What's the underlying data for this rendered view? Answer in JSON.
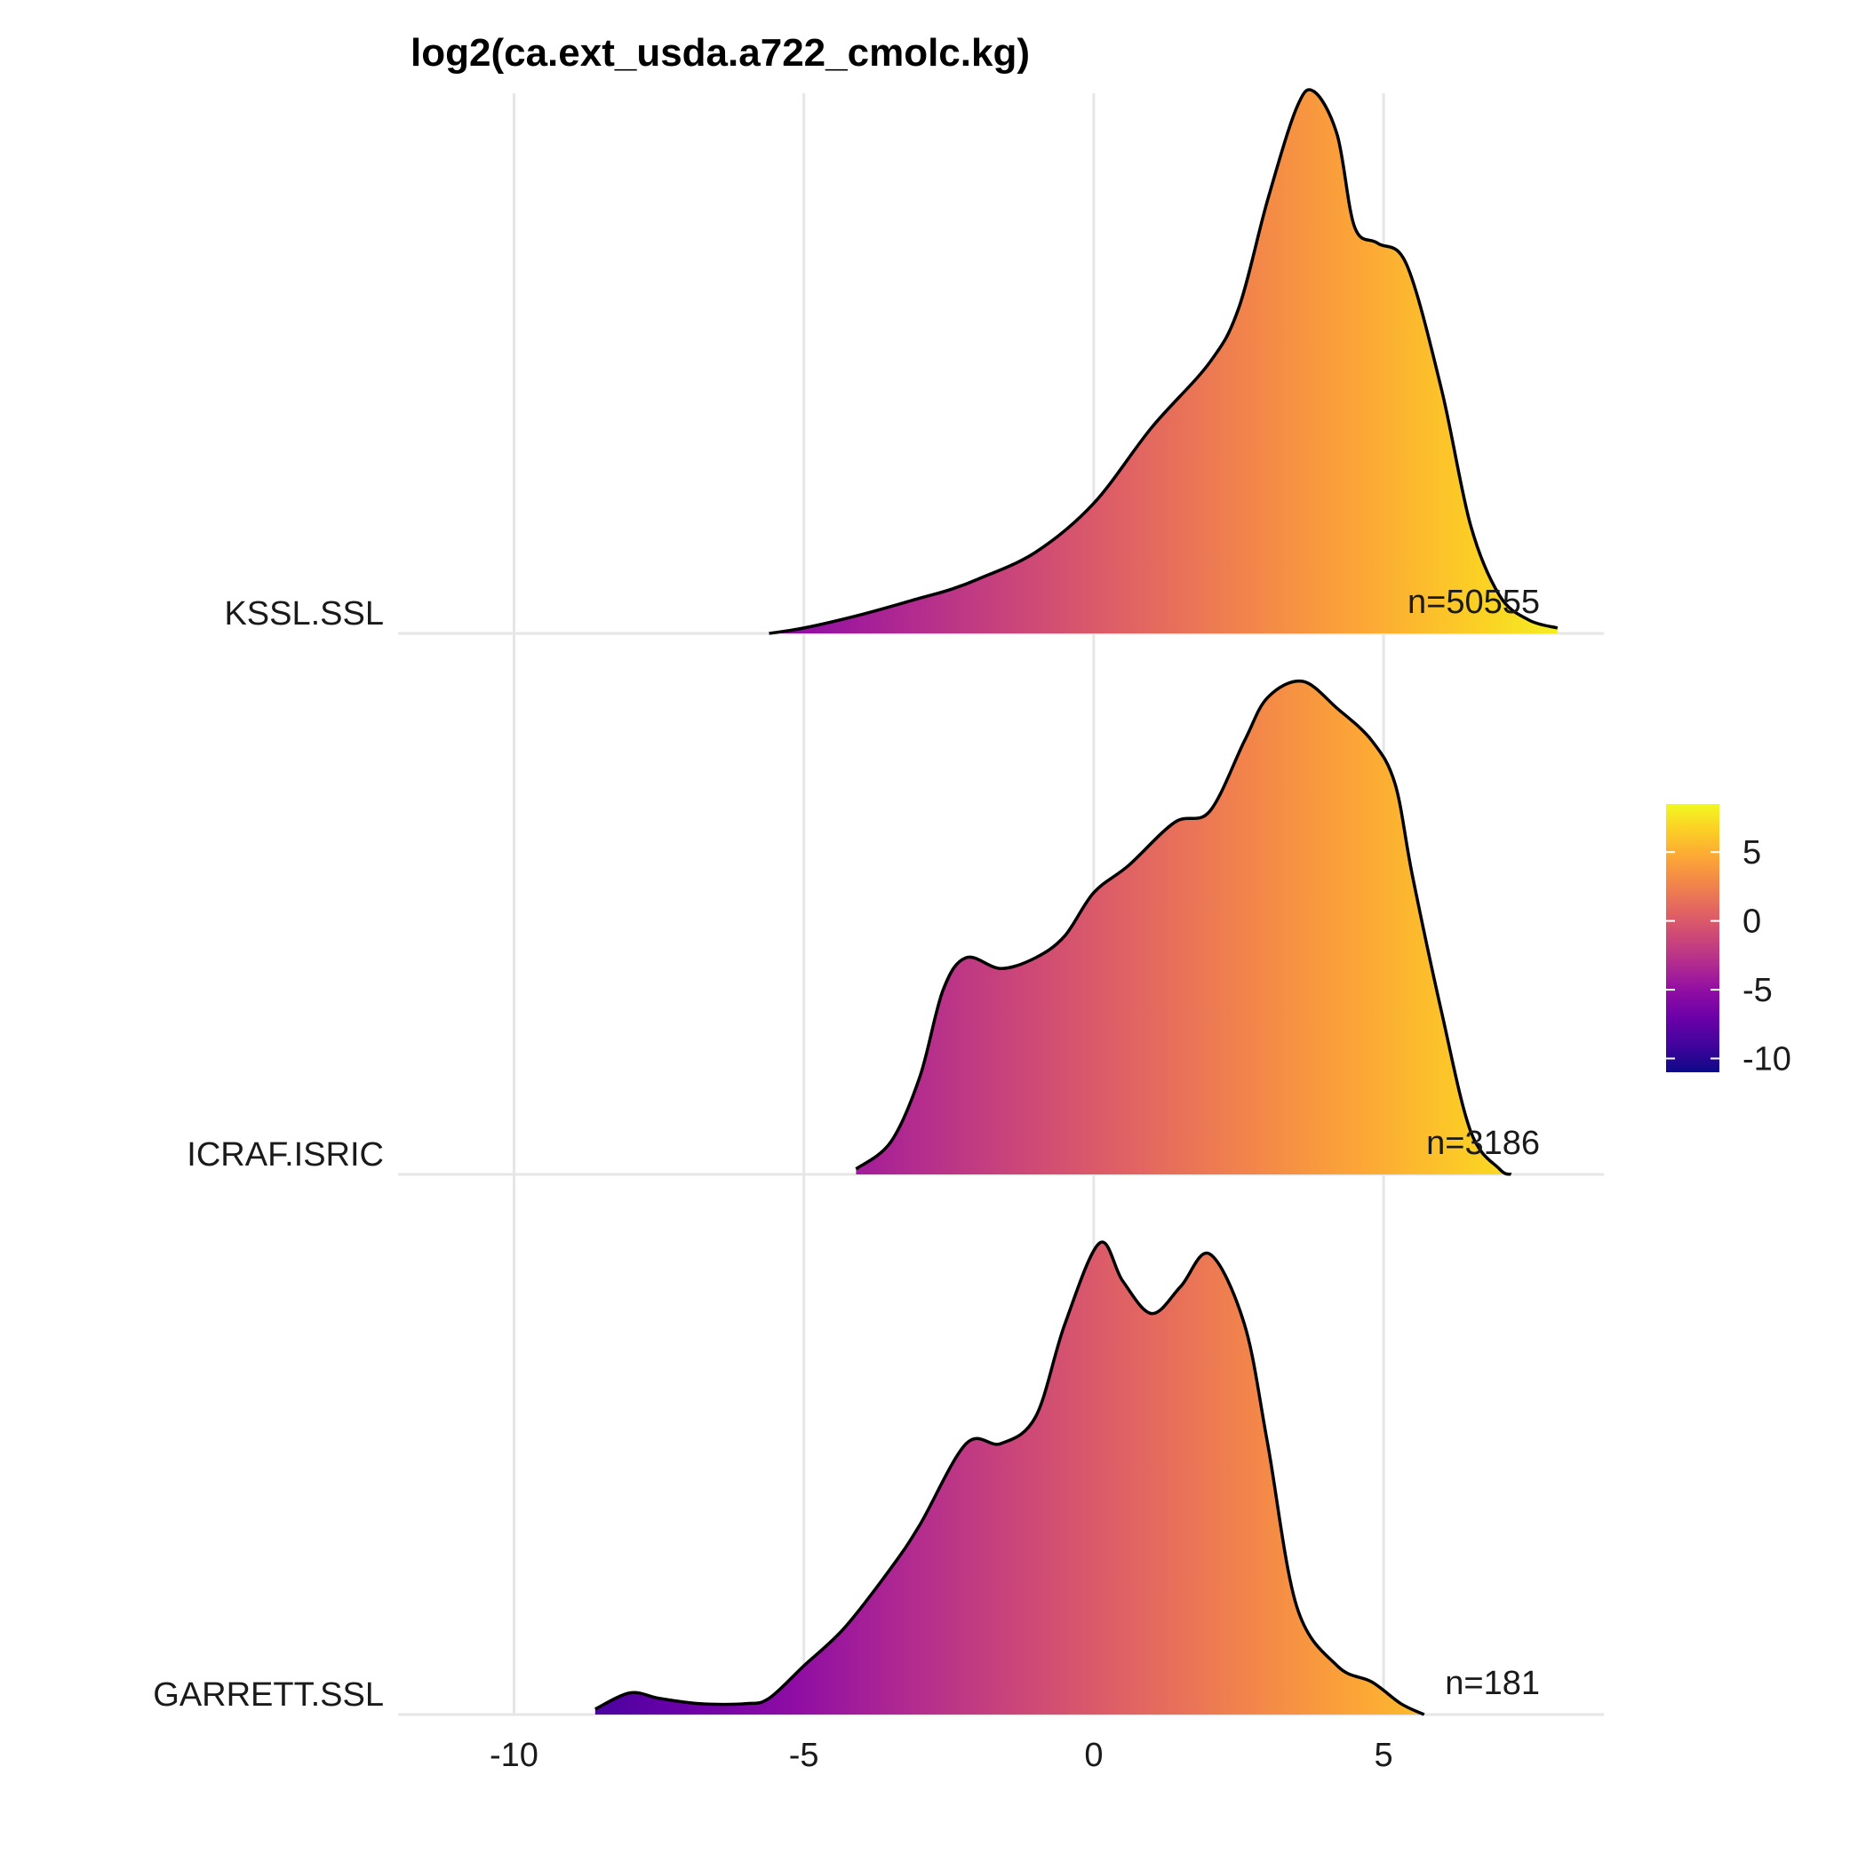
{
  "chart_data": {
    "type": "ridgeline",
    "title": "log2(ca.ext_usda.a722_cmolc.kg)",
    "xlabel": "",
    "ylabel": "",
    "xlim": [
      -12,
      8.8
    ],
    "x_ticks": [
      -10,
      -5,
      0,
      5
    ],
    "x_tick_labels": [
      "-10",
      "-5",
      "0",
      "5"
    ],
    "grid": true,
    "colorscale": "plasma",
    "color_legend": {
      "position": "right",
      "range": [
        -11,
        8.5
      ],
      "ticks": [
        5,
        0,
        -5,
        -10
      ],
      "tick_labels": [
        "5",
        "0",
        "-5",
        "-10"
      ]
    },
    "series": [
      {
        "name": "KSSL.SSL",
        "count_label": "n=50555",
        "density": [
          [
            -5.6,
            0.0
          ],
          [
            -5.0,
            0.01
          ],
          [
            -4.0,
            0.035
          ],
          [
            -3.0,
            0.065
          ],
          [
            -2.5,
            0.08
          ],
          [
            -2.0,
            0.1
          ],
          [
            -1.0,
            0.15
          ],
          [
            0.0,
            0.24
          ],
          [
            1.0,
            0.38
          ],
          [
            2.0,
            0.5
          ],
          [
            2.5,
            0.6
          ],
          [
            3.0,
            0.8
          ],
          [
            3.5,
            0.97
          ],
          [
            3.8,
            1.0
          ],
          [
            4.2,
            0.92
          ],
          [
            4.5,
            0.75
          ],
          [
            4.9,
            0.72
          ],
          [
            5.4,
            0.68
          ],
          [
            6.0,
            0.45
          ],
          [
            6.5,
            0.2
          ],
          [
            7.0,
            0.07
          ],
          [
            7.5,
            0.025
          ],
          [
            8.0,
            0.01
          ]
        ]
      },
      {
        "name": "ICRAF.ISRIC",
        "count_label": "n=3186",
        "density": [
          [
            -4.1,
            0.01
          ],
          [
            -3.5,
            0.06
          ],
          [
            -3.0,
            0.18
          ],
          [
            -2.6,
            0.34
          ],
          [
            -2.2,
            0.4
          ],
          [
            -1.6,
            0.38
          ],
          [
            -1.0,
            0.4
          ],
          [
            -0.5,
            0.44
          ],
          [
            0.0,
            0.52
          ],
          [
            0.6,
            0.57
          ],
          [
            1.4,
            0.65
          ],
          [
            2.0,
            0.67
          ],
          [
            2.6,
            0.8
          ],
          [
            3.0,
            0.88
          ],
          [
            3.6,
            0.91
          ],
          [
            4.2,
            0.86
          ],
          [
            4.8,
            0.8
          ],
          [
            5.2,
            0.72
          ],
          [
            5.5,
            0.55
          ],
          [
            6.0,
            0.3
          ],
          [
            6.5,
            0.08
          ],
          [
            7.0,
            0.01
          ],
          [
            7.2,
            0.0
          ]
        ]
      },
      {
        "name": "GARRETT.SSL",
        "count_label": "n=181",
        "density": [
          [
            -8.6,
            0.01
          ],
          [
            -8.0,
            0.04
          ],
          [
            -7.5,
            0.03
          ],
          [
            -6.8,
            0.02
          ],
          [
            -6.0,
            0.02
          ],
          [
            -5.6,
            0.03
          ],
          [
            -5.0,
            0.09
          ],
          [
            -4.3,
            0.16
          ],
          [
            -3.5,
            0.27
          ],
          [
            -3.0,
            0.35
          ],
          [
            -2.2,
            0.5
          ],
          [
            -1.6,
            0.5
          ],
          [
            -1.0,
            0.55
          ],
          [
            -0.5,
            0.72
          ],
          [
            0.1,
            0.87
          ],
          [
            0.5,
            0.8
          ],
          [
            1.0,
            0.74
          ],
          [
            1.5,
            0.79
          ],
          [
            2.0,
            0.85
          ],
          [
            2.6,
            0.72
          ],
          [
            3.0,
            0.5
          ],
          [
            3.5,
            0.2
          ],
          [
            4.2,
            0.09
          ],
          [
            4.8,
            0.06
          ],
          [
            5.3,
            0.02
          ],
          [
            5.7,
            0.0
          ]
        ]
      }
    ]
  }
}
